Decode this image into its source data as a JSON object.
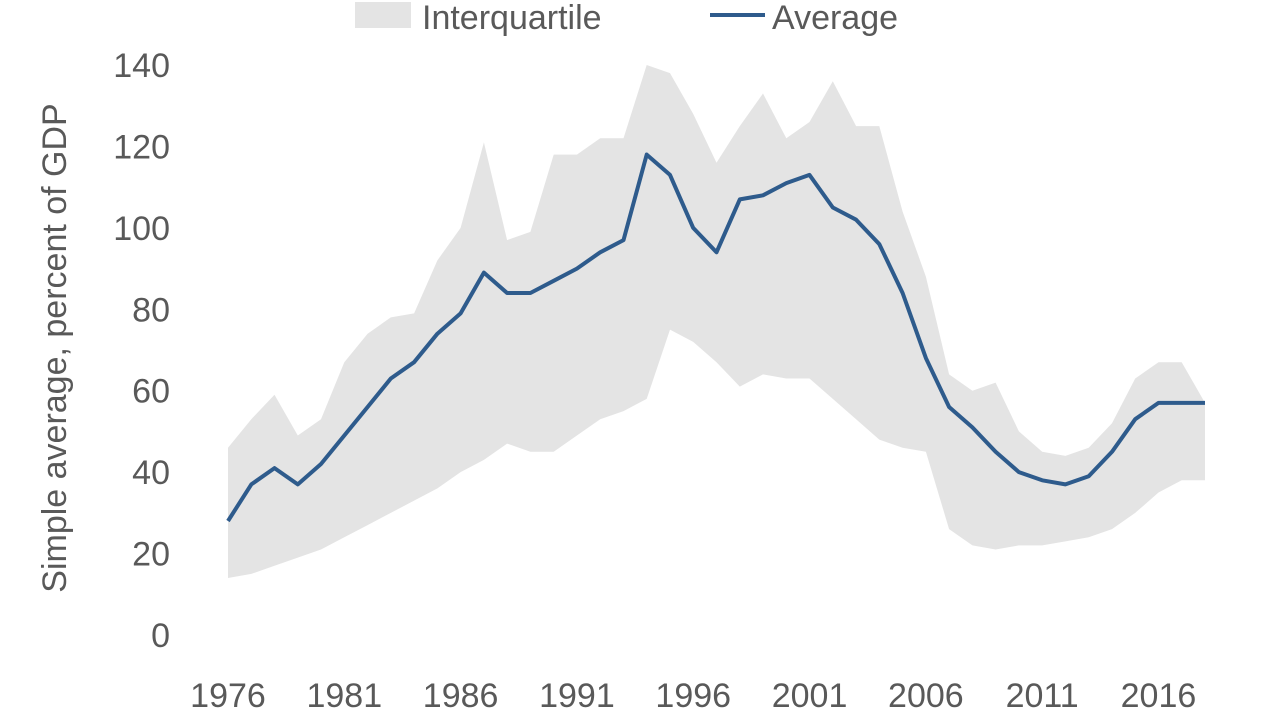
{
  "chart_data": {
    "type": "area",
    "title": "",
    "xlabel": "",
    "ylabel": "Simple average, percent of GDP",
    "ylim": [
      0,
      140
    ],
    "y_ticks": [
      0,
      20,
      40,
      60,
      80,
      100,
      120,
      140
    ],
    "x_ticks": [
      1976,
      1981,
      1986,
      1991,
      1996,
      2001,
      2006,
      2011,
      2016
    ],
    "xlim": [
      1976,
      2018
    ],
    "grid": false,
    "legend_position": "top-center",
    "colors": {
      "band": "#e4e4e4",
      "line": "#2e5b8c"
    },
    "x": [
      1976,
      1977,
      1978,
      1979,
      1980,
      1981,
      1982,
      1983,
      1984,
      1985,
      1986,
      1987,
      1988,
      1989,
      1990,
      1991,
      1992,
      1993,
      1994,
      1995,
      1996,
      1997,
      1998,
      1999,
      2000,
      2001,
      2002,
      2003,
      2004,
      2005,
      2006,
      2007,
      2008,
      2009,
      2010,
      2011,
      2012,
      2013,
      2014,
      2015,
      2016,
      2017,
      2018
    ],
    "series": [
      {
        "name": "Interquartile",
        "kind": "band",
        "lower": [
          14,
          15,
          17,
          19,
          21,
          24,
          27,
          30,
          33,
          36,
          40,
          43,
          47,
          45,
          45,
          49,
          53,
          55,
          58,
          75,
          72,
          67,
          61,
          64,
          63,
          63,
          58,
          53,
          48,
          46,
          45,
          26,
          22,
          21,
          22,
          22,
          23,
          24,
          26,
          30,
          35,
          38,
          38
        ],
        "upper": [
          46,
          53,
          59,
          49,
          53,
          67,
          74,
          78,
          79,
          92,
          100,
          121,
          97,
          99,
          118,
          118,
          122,
          122,
          140,
          138,
          128,
          116,
          125,
          133,
          122,
          126,
          136,
          125,
          125,
          104,
          88,
          64,
          60,
          62,
          50,
          45,
          44,
          46,
          52,
          63,
          67,
          67,
          57
        ]
      },
      {
        "name": "Average",
        "kind": "line",
        "values": [
          28,
          37,
          41,
          37,
          42,
          49,
          56,
          63,
          67,
          74,
          79,
          89,
          84,
          84,
          87,
          90,
          94,
          97,
          118,
          113,
          100,
          94,
          107,
          108,
          111,
          113,
          105,
          102,
          96,
          84,
          68,
          56,
          51,
          45,
          40,
          38,
          37,
          39,
          45,
          53,
          57,
          57,
          57
        ]
      }
    ]
  }
}
